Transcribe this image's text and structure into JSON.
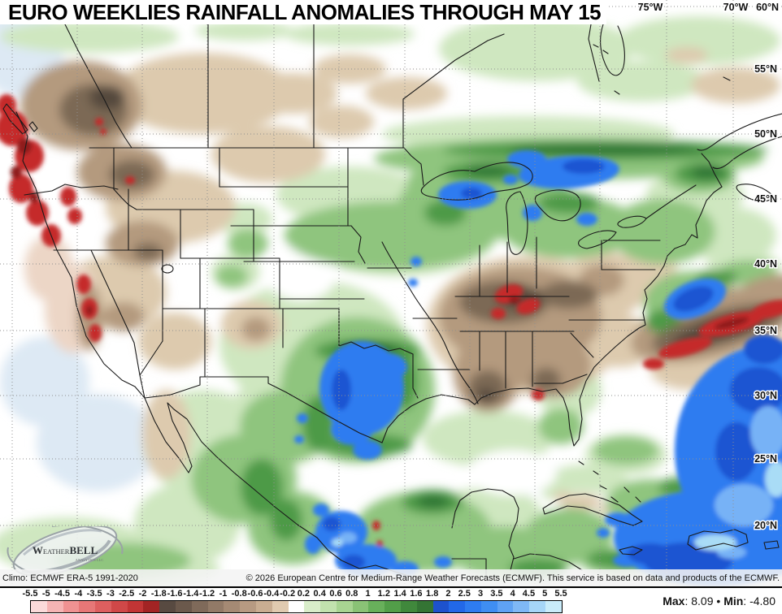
{
  "title": "EURO WEEKLIES RAINFALL ANOMALIES THROUGH MAY 15",
  "logo": {
    "brand_w": "W",
    "brand_eather": "EATHER",
    "brand_bell": "BELL",
    "subtitle": "ANALYTICS LLC"
  },
  "map": {
    "lon_labels": [
      "75°W",
      "70°W"
    ],
    "corner_label": "60°N",
    "lat_labels": [
      "55°N",
      "50°N",
      "45°N",
      "40°N",
      "35°N",
      "30°N",
      "25°N",
      "20°N"
    ]
  },
  "footer": {
    "climo": "Climo: ECMWF ERA-5 1991-2020",
    "copyright": "© 2026 European Centre for Medium-Range Weather Forecasts (ECMWF). This service is based on data and products of the ECMWF."
  },
  "colorbar": {
    "tick_labels": [
      "-5.5",
      "-5",
      "-4.5",
      "-4",
      "-3.5",
      "-3",
      "-2.5",
      "-2",
      "-1.8",
      "-1.6",
      "-1.4",
      "-1.2",
      "-1",
      "-0.8",
      "-0.6",
      "-0.4",
      "-0.2",
      "0.2",
      "0.4",
      "0.6",
      "0.8",
      "1",
      "1.2",
      "1.4",
      "1.6",
      "1.8",
      "2",
      "2.5",
      "3",
      "3.5",
      "4",
      "4.5",
      "5",
      "5.5"
    ],
    "cell_colors": [
      "#fbdada",
      "#f5b4b4",
      "#ef9292",
      "#e77777",
      "#dd5f5f",
      "#d04848",
      "#c23535",
      "#a32424",
      "#584a41",
      "#6b594c",
      "#7f6a5a",
      "#927a67",
      "#a58a74",
      "#b79a82",
      "#c9ad92",
      "#e0cab0",
      "#ffffff",
      "#d9edca",
      "#c2e2ae",
      "#a8d492",
      "#8ac276",
      "#68b05b",
      "#529e49",
      "#40883c",
      "#347434",
      "#1d52cd",
      "#2268e8",
      "#2e7cf0",
      "#3f8ef2",
      "#5fa2f4",
      "#7fb8f6",
      "#a6d6f8",
      "#c9ecfa"
    ],
    "stats": {
      "max_label": "Max",
      "max_value": "8.09",
      "separator": "•",
      "min_label": "Min",
      "min_value": "-4.80"
    }
  }
}
